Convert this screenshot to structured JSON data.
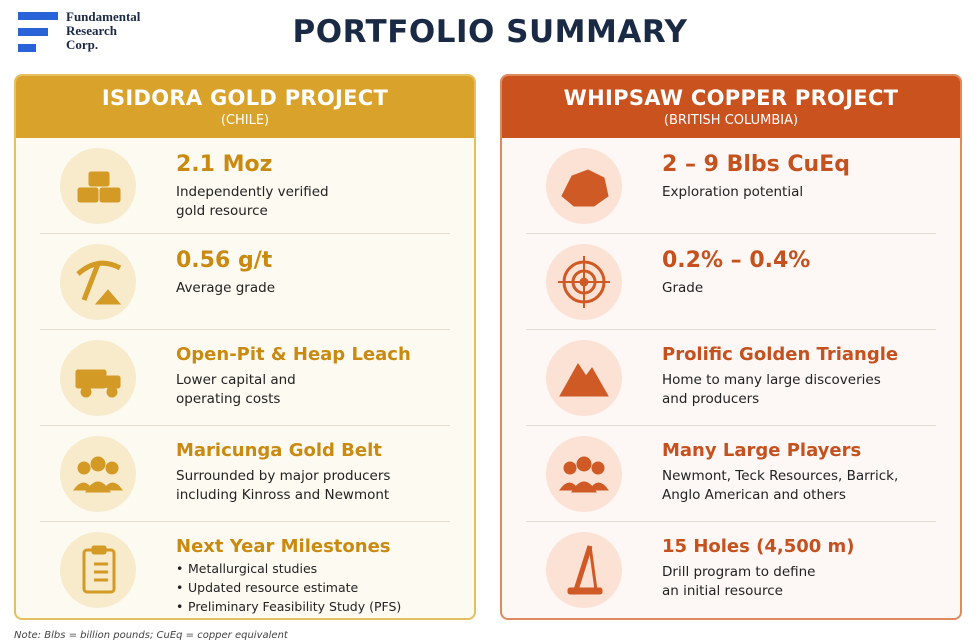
{
  "header": {
    "logo": [
      "Fundamental",
      "Research",
      "Corp."
    ],
    "title": "PORTFOLIO SUMMARY"
  },
  "panels": [
    {
      "title": "ISIDORA GOLD PROJECT",
      "subtitle": "(CHILE)",
      "items": [
        {
          "headline": "2.1 Moz",
          "description": [
            "Independently verified",
            "gold resource"
          ]
        },
        {
          "headline": "0.56 g/t",
          "description": [
            "Average grade"
          ]
        },
        {
          "headline": "Open-Pit & Heap Leach",
          "description": [
            "Lower capital and",
            "operating costs"
          ]
        },
        {
          "headline": "Maricunga Gold Belt",
          "description": [
            "Surrounded by major producers",
            "including Kinross and Newmont"
          ]
        },
        {
          "headline": "Next Year Milestones",
          "bullets": [
            "Metallurgical studies",
            "Updated resource estimate",
            "Preliminary Feasibility Study (PFS)"
          ]
        }
      ]
    },
    {
      "title": "WHIPSAW COPPER PROJECT",
      "subtitle": "(BRITISH COLUMBIA)",
      "items": [
        {
          "headline": "2 – 9 Blbs CuEq",
          "description": [
            "Exploration potential"
          ]
        },
        {
          "headline": "0.2% – 0.4%",
          "description": [
            "Grade"
          ]
        },
        {
          "headline": "Prolific Golden Triangle",
          "description": [
            "Home to many large discoveries",
            "and producers"
          ]
        },
        {
          "headline": "Many Large Players",
          "description": [
            "Newmont, Teck Resources, Barrick,",
            "Anglo American and others"
          ]
        },
        {
          "headline": "15 Holes (4,500 m)",
          "description": [
            "Drill program to define",
            "an initial resource"
          ]
        }
      ]
    }
  ],
  "note": "Note: Blbs = billion pounds; CuEq = copper equivalent"
}
